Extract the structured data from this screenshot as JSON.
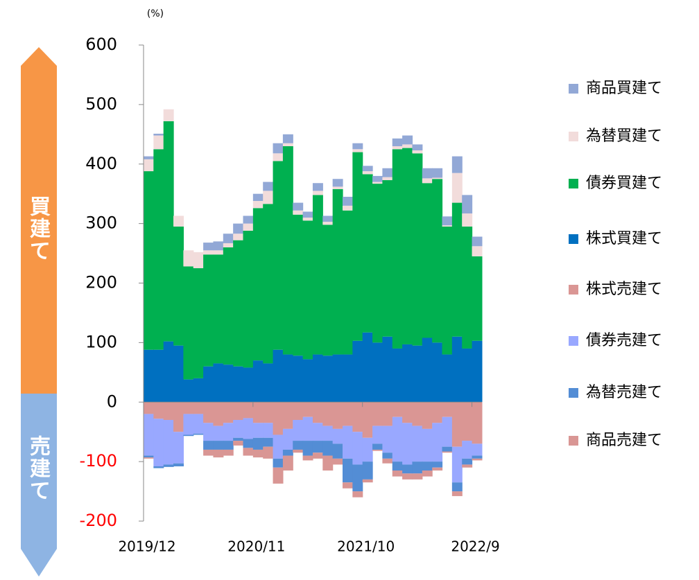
{
  "chart_data": {
    "type": "stacked_bar",
    "unit": "(%)",
    "side_labels": [
      "買建て",
      "売建て"
    ],
    "categories": [
      "2019/12",
      null,
      null,
      null,
      null,
      null,
      null,
      null,
      null,
      null,
      null,
      "2020/11",
      null,
      null,
      null,
      null,
      null,
      null,
      null,
      null,
      null,
      null,
      "2021/10",
      null,
      null,
      null,
      null,
      null,
      null,
      null,
      null,
      null,
      null,
      "2022/9"
    ],
    "ylim": [
      -200,
      600
    ],
    "yticks": [
      -200,
      -100,
      0,
      100,
      200,
      300,
      400,
      500,
      600
    ],
    "negative_tick_color": "#ff0000",
    "series": [
      {
        "name": "商品買建て",
        "color": "#92a8d6",
        "values": [
          5,
          3,
          0,
          0,
          0,
          0,
          13,
          15,
          16,
          17,
          13,
          12,
          15,
          17,
          15,
          13,
          10,
          13,
          10,
          13,
          15,
          10,
          9,
          10,
          15,
          13,
          15,
          10,
          17,
          16,
          15,
          28,
          31,
          16
        ]
      },
      {
        "name": "為替買建て",
        "color": "#f2dcdb",
        "values": [
          20,
          23,
          20,
          18,
          27,
          27,
          7,
          7,
          7,
          11,
          12,
          12,
          22,
          13,
          5,
          7,
          5,
          7,
          5,
          4,
          8,
          5,
          5,
          3,
          5,
          5,
          6,
          5,
          8,
          2,
          2,
          50,
          22,
          17
        ]
      },
      {
        "name": "債券買建て",
        "color": "#00b050",
        "values": [
          300,
          337,
          370,
          200,
          190,
          185,
          188,
          183,
          197,
          212,
          230,
          256,
          268,
          317,
          350,
          237,
          233,
          268,
          220,
          278,
          242,
          317,
          266,
          267,
          263,
          335,
          330,
          323,
          260,
          275,
          215,
          225,
          205,
          142
        ]
      },
      {
        "name": "株式買建て",
        "color": "#0070c0",
        "values": [
          88,
          88,
          102,
          95,
          38,
          40,
          60,
          65,
          63,
          60,
          58,
          70,
          65,
          88,
          80,
          78,
          72,
          80,
          78,
          80,
          80,
          103,
          117,
          100,
          110,
          90,
          97,
          95,
          108,
          100,
          80,
          110,
          90,
          103
        ]
      },
      {
        "name": "株式売建て",
        "color": "#da9694",
        "values": [
          -20,
          -28,
          -30,
          -50,
          -20,
          -20,
          -35,
          -40,
          -35,
          -30,
          -27,
          -35,
          -35,
          -55,
          -45,
          -30,
          -25,
          -35,
          -40,
          -45,
          -40,
          -50,
          -60,
          -40,
          -40,
          -25,
          -35,
          -40,
          -45,
          -35,
          -25,
          -75,
          -65,
          -70
        ]
      },
      {
        "name": "債券売建て",
        "color": "#99a8ff",
        "values": [
          -70,
          -80,
          -75,
          -53,
          -35,
          -33,
          -30,
          -25,
          -30,
          -30,
          -35,
          -25,
          -25,
          -40,
          -35,
          -35,
          -40,
          -30,
          -25,
          -25,
          -55,
          -55,
          -40,
          -30,
          -45,
          -75,
          -70,
          -60,
          -55,
          -65,
          -50,
          -60,
          -30,
          -20
        ]
      },
      {
        "name": "為替売建て",
        "color": "#538dd5",
        "values": [
          -3,
          -3,
          -4,
          -5,
          -2,
          -2,
          -15,
          -15,
          -15,
          -5,
          -15,
          -20,
          -15,
          -15,
          -10,
          -15,
          -25,
          -20,
          -25,
          -25,
          -40,
          -45,
          -30,
          -10,
          -10,
          -15,
          -15,
          -20,
          -15,
          -10,
          -8,
          -15,
          -10,
          -5
        ]
      },
      {
        "name": "商品売建て",
        "color": "#d99694",
        "values": [
          -2,
          0,
          0,
          0,
          0,
          0,
          -10,
          -13,
          -10,
          -8,
          -13,
          -13,
          -20,
          -27,
          -25,
          -5,
          -8,
          -10,
          -25,
          -10,
          -10,
          -10,
          -5,
          -2,
          -8,
          -10,
          -10,
          -10,
          -10,
          -5,
          -2,
          -8,
          -5,
          -3
        ]
      }
    ]
  }
}
